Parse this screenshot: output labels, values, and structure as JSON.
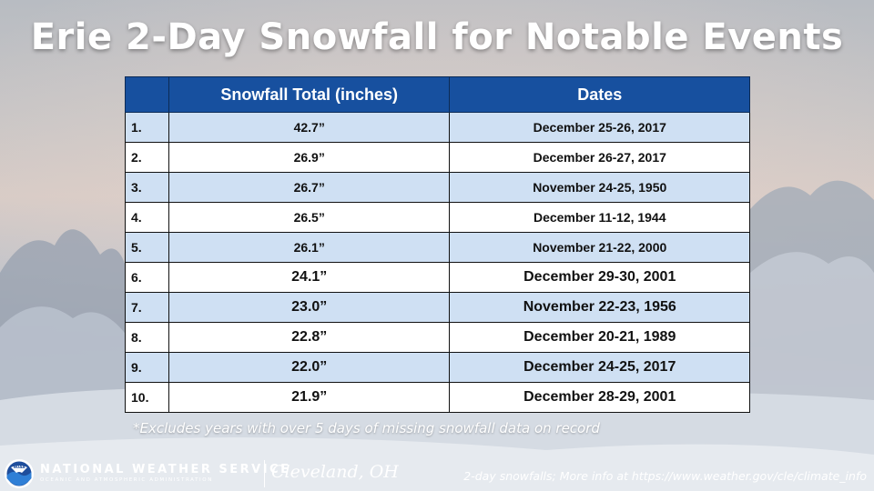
{
  "title": "Erie 2-Day Snowfall for Notable Events",
  "table": {
    "headers": [
      "",
      "Snowfall Total (inches)",
      "Dates"
    ],
    "rows": [
      {
        "rank": "1.",
        "total": "42.7”",
        "dates": "December 25-26, 2017"
      },
      {
        "rank": "2.",
        "total": "26.9”",
        "dates": "December 26-27, 2017"
      },
      {
        "rank": "3.",
        "total": "26.7”",
        "dates": "November 24-25, 1950"
      },
      {
        "rank": "4.",
        "total": "26.5”",
        "dates": "December 11-12, 1944"
      },
      {
        "rank": "5.",
        "total": "26.1”",
        "dates": "November 21-22, 2000"
      },
      {
        "rank": "6.",
        "total": "24.1”",
        "dates": "December 29-30, 2001"
      },
      {
        "rank": "7.",
        "total": "23.0”",
        "dates": "November 22-23, 1956"
      },
      {
        "rank": "8.",
        "total": "22.8”",
        "dates": "December 20-21, 1989"
      },
      {
        "rank": "9.",
        "total": "22.0”",
        "dates": "December 24-25, 2017"
      },
      {
        "rank": "10.",
        "total": "21.9”",
        "dates": "December 28-29, 2001"
      }
    ]
  },
  "footnote": "*Excludes years with over 5 days of missing snowfall data on record",
  "footer": {
    "agency_name": "NATIONAL WEATHER SERVICE",
    "agency_sub": "OCEANIC AND ATMOSPHERIC ADMINISTRATION",
    "logo_text": "NOAA",
    "office": "Cleveland, OH",
    "more_info": "2-day snowfalls; More info at https://www.weather.gov/cle/climate_info"
  },
  "colors": {
    "header_bg": "#17509f",
    "row_alt_bg": "#cfe0f3",
    "row_bg": "#ffffff"
  }
}
